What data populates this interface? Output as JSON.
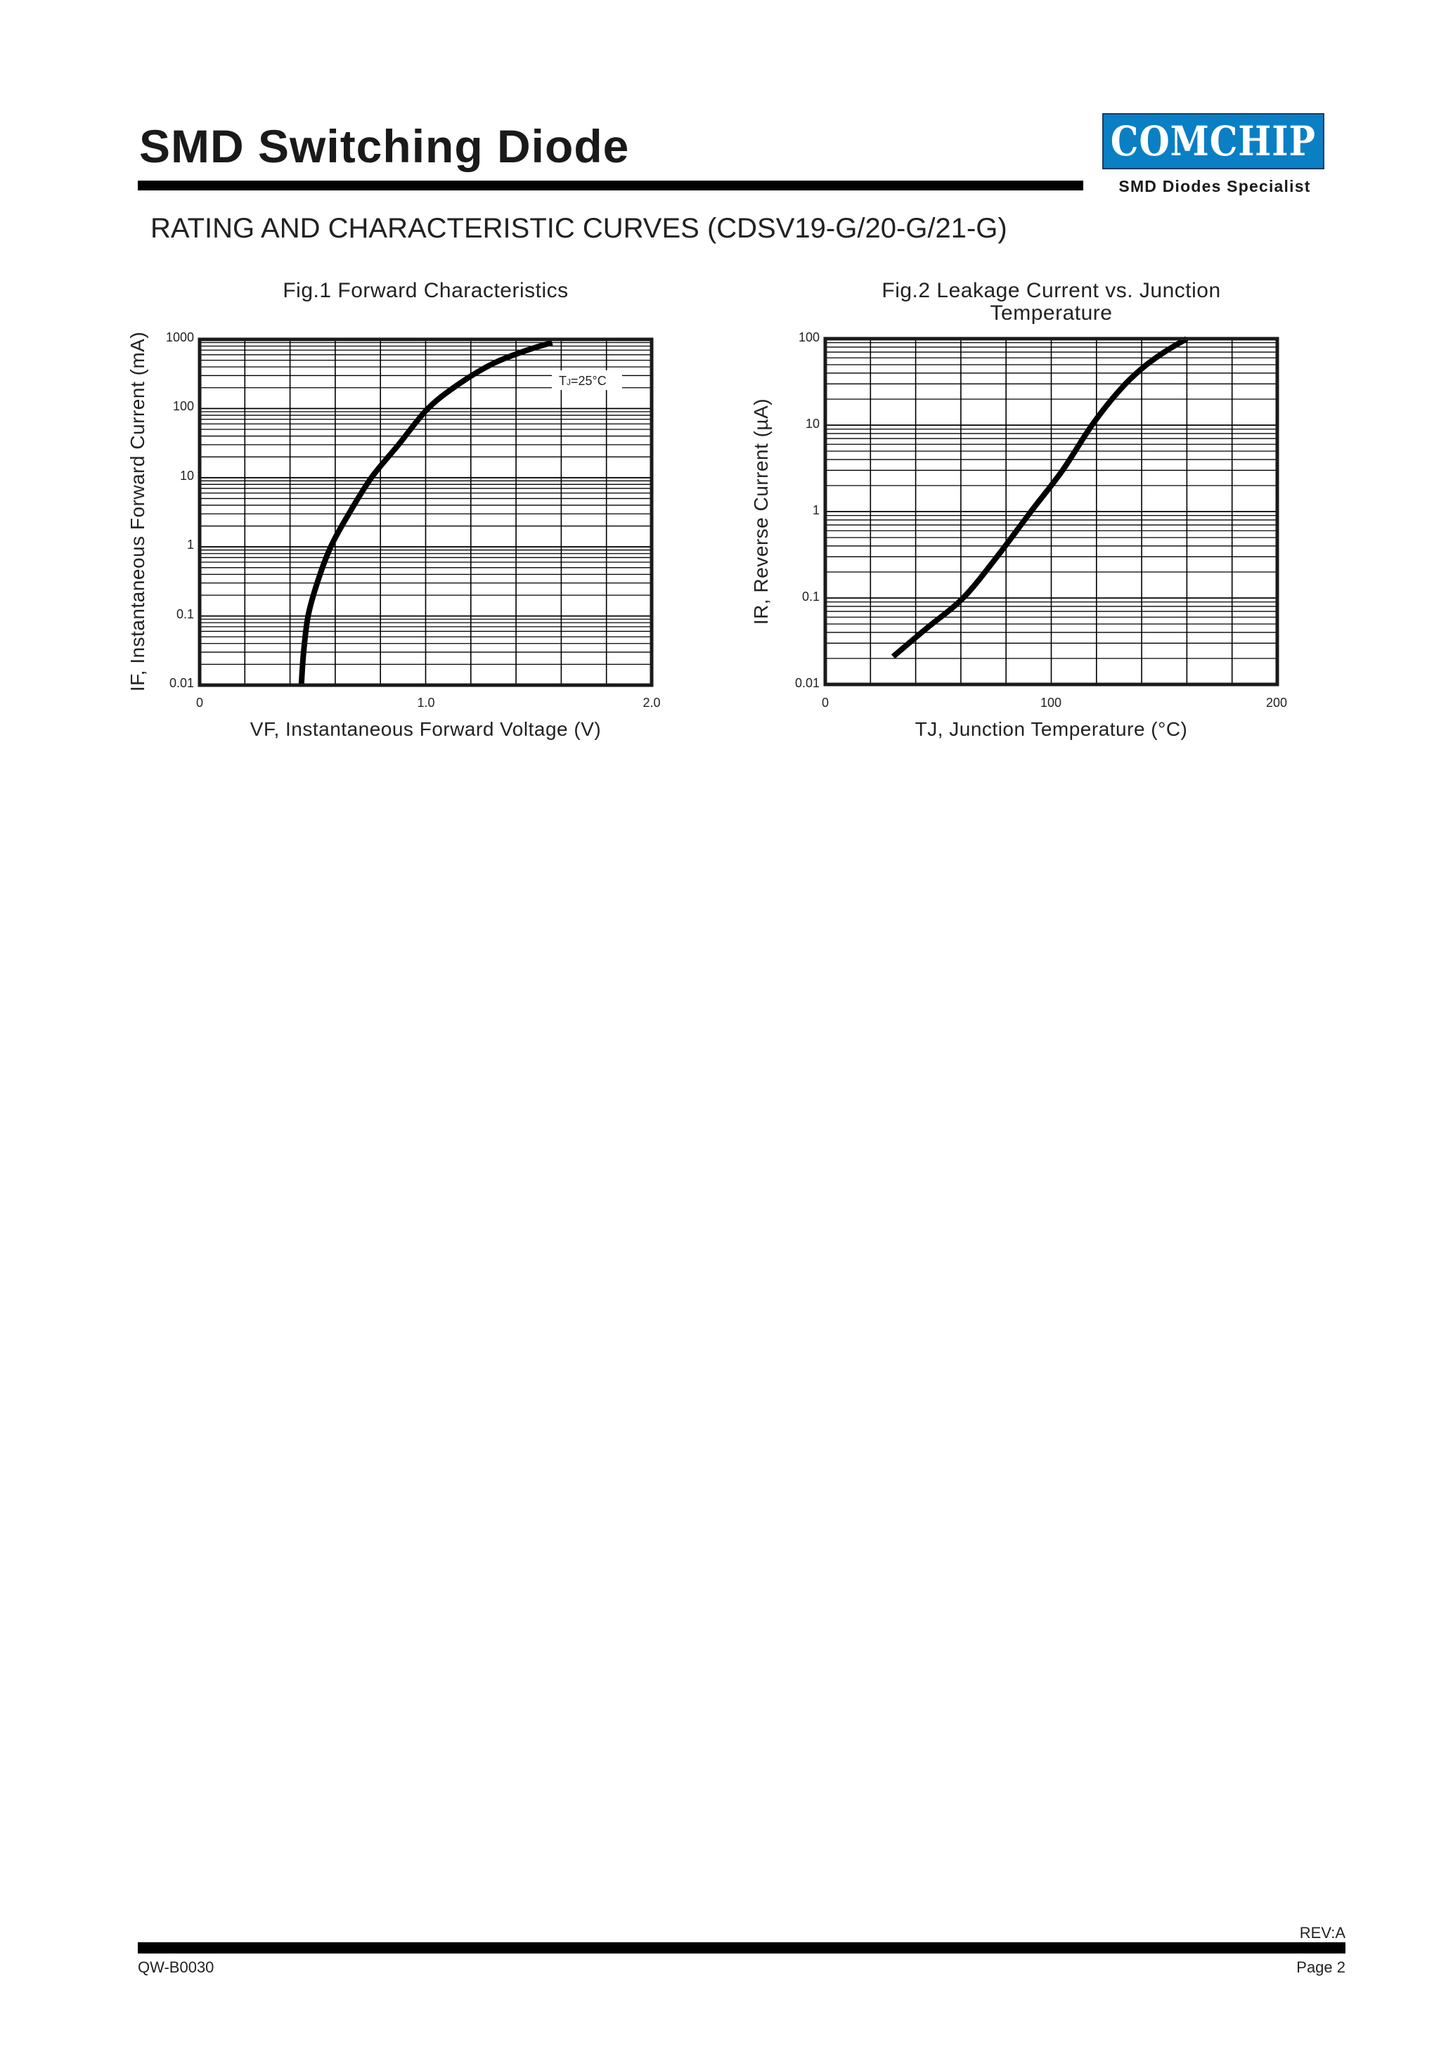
{
  "header": {
    "title": "SMD Switching Diode",
    "logo_text": "COMCHIP",
    "logo_tagline": "SMD Diodes Specialist",
    "brand_color": "#0a7fc4"
  },
  "section_title": "RATING AND CHARACTERISTIC CURVES (CDSV19-G/20-G/21-G)",
  "figures": {
    "fig1": {
      "title": "Fig.1 Forward Characteristics",
      "ylabel": "IF, Instantaneous Forward Current (mA)",
      "xlabel": "VF, Instantaneous Forward Voltage (V)",
      "annotation": "TJ=25°C",
      "yticks": [
        "1000",
        "100",
        "10",
        "1",
        "0.1",
        "0.01"
      ],
      "xticks": [
        "0",
        "1.0",
        "2.0"
      ]
    },
    "fig2": {
      "title_line1": "Fig.2 Leakage Current vs. Junction",
      "title_line2": "Temperature",
      "ylabel": "IR, Reverse Current (µA)",
      "xlabel": "TJ, Junction Temperature (°C)",
      "yticks": [
        "100",
        "10",
        "1",
        "0.1",
        "0.01"
      ],
      "xticks": [
        "0",
        "100",
        "200"
      ]
    }
  },
  "chart_data": [
    {
      "type": "line",
      "title": "Fig.1 Forward Characteristics",
      "xlabel": "VF, Instantaneous Forward Voltage (V)",
      "ylabel": "IF, Instantaneous Forward Current (mA)",
      "xlim": [
        0,
        2.0
      ],
      "ylim": [
        0.01,
        1000
      ],
      "yscale": "log",
      "grid": true,
      "x_tick_labels": [
        "0",
        "1.0",
        "2.0"
      ],
      "y_tick_labels": [
        "0.01",
        "0.1",
        "1",
        "10",
        "100",
        "1000"
      ],
      "annotation": "TJ=25°C",
      "series": [
        {
          "name": "TJ=25°C",
          "x": [
            0.45,
            0.46,
            0.48,
            0.52,
            0.58,
            0.66,
            0.76,
            0.88,
            1.01,
            1.15,
            1.3,
            1.45,
            1.56
          ],
          "y": [
            0.01,
            0.03,
            0.1,
            0.3,
            1,
            3,
            10,
            30,
            100,
            230,
            450,
            700,
            900
          ]
        }
      ]
    },
    {
      "type": "line",
      "title": "Fig.2 Leakage Current vs. Junction Temperature",
      "xlabel": "TJ, Junction Temperature (°C)",
      "ylabel": "IR, Reverse Current (µA)",
      "xlim": [
        0,
        200
      ],
      "ylim": [
        0.01,
        100
      ],
      "yscale": "log",
      "grid": true,
      "x_tick_labels": [
        "0",
        "100",
        "200"
      ],
      "y_tick_labels": [
        "0.01",
        "0.1",
        "1",
        "10",
        "100"
      ],
      "series": [
        {
          "name": "IR",
          "x": [
            30,
            45,
            61,
            76,
            91,
            105,
            118,
            130,
            140,
            150,
            160
          ],
          "y": [
            0.021,
            0.045,
            0.1,
            0.3,
            1,
            3,
            10,
            25,
            45,
            70,
            100
          ]
        }
      ]
    }
  ],
  "footer": {
    "revision": "REV:A",
    "doc_number": "QW-B0030",
    "page": "Page 2"
  }
}
